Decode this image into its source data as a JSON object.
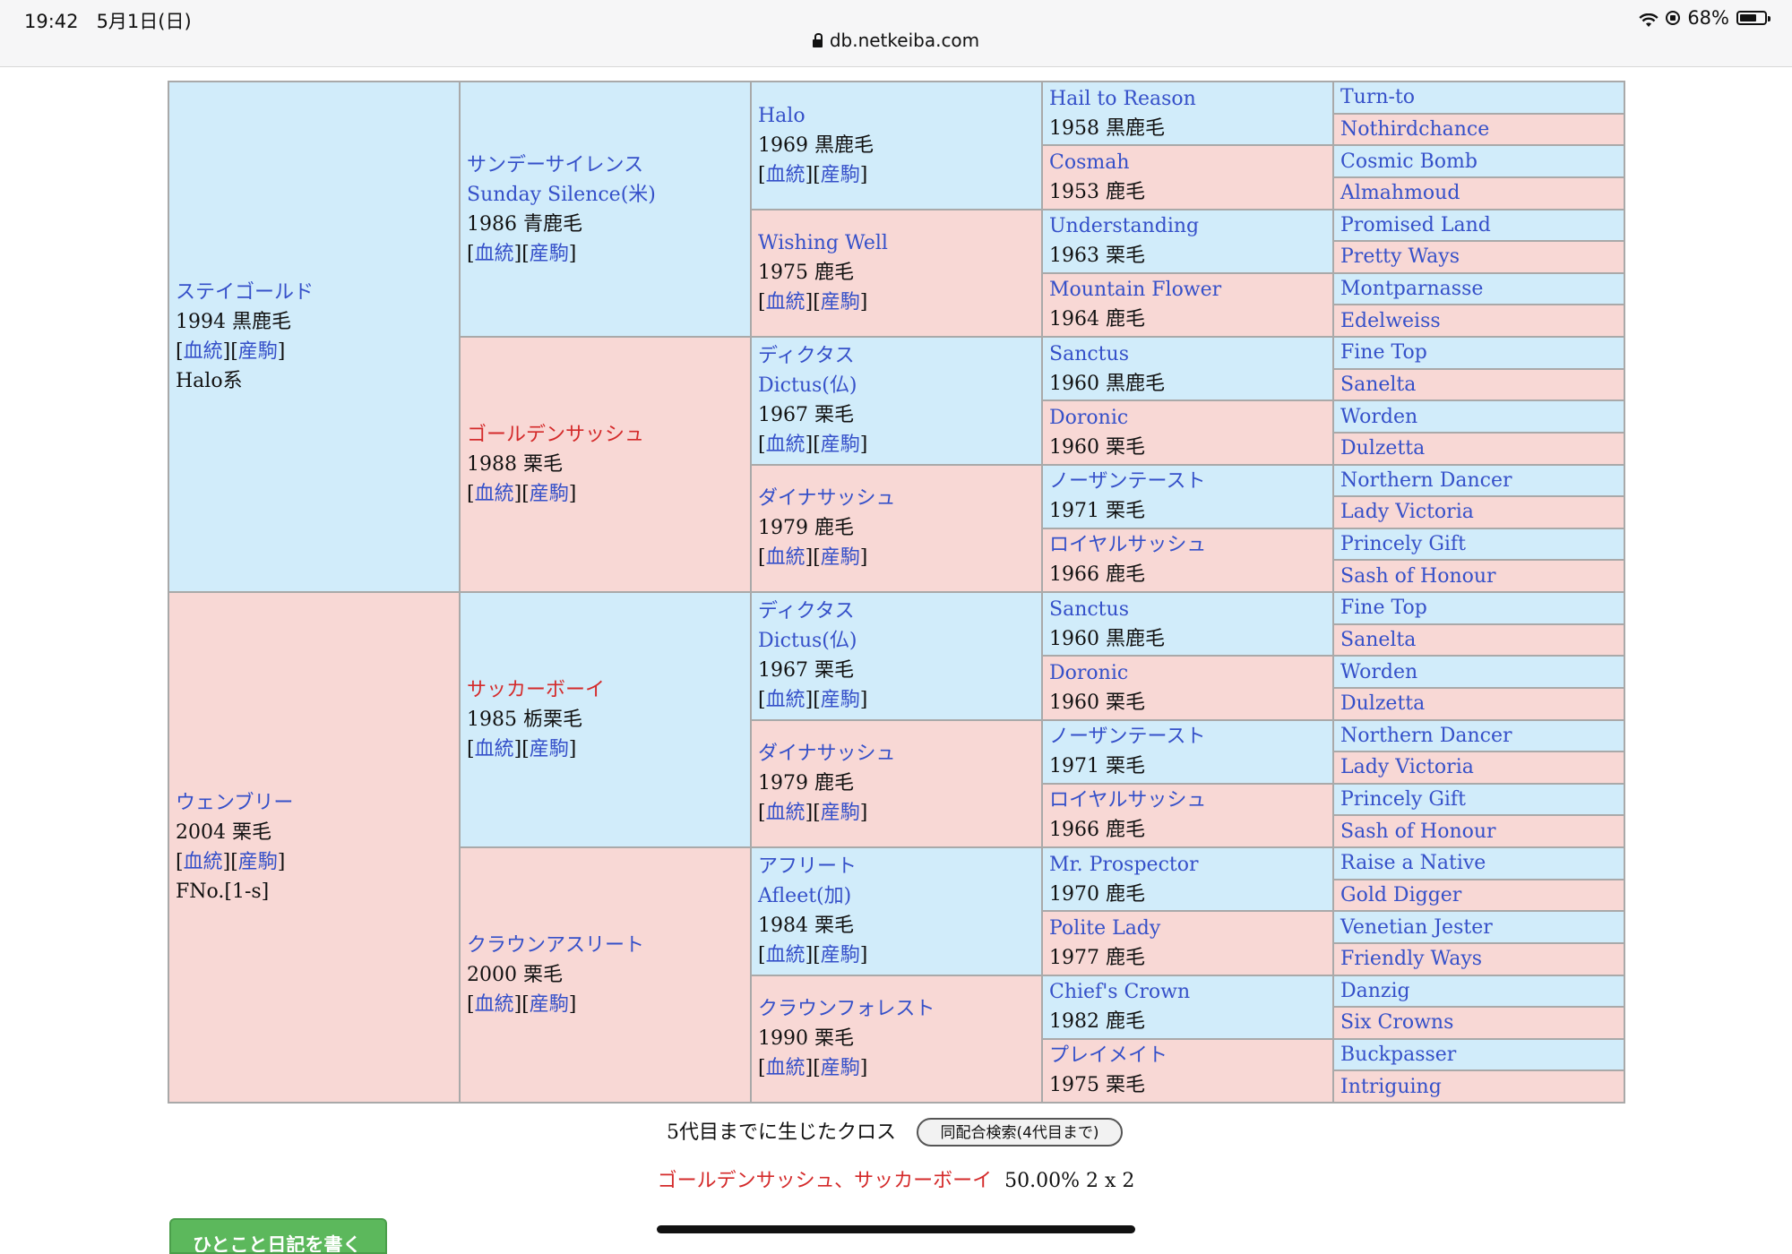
{
  "status_bar": {
    "time": "19:42",
    "date": "5月1日(日)",
    "url": "db.netkeiba.com",
    "battery": "68%",
    "battery_fill": 0.68
  },
  "links": {
    "pedigree": "血統",
    "progeny": "産駒"
  },
  "gen1": [
    {
      "name": "ステイゴールド",
      "info": "1994 黒鹿毛",
      "extra": "Halo系"
    },
    {
      "name": "ウェンブリー",
      "info": "2004 栗毛",
      "extra": "FNo.[1-s]"
    }
  ],
  "gen2": [
    {
      "name": "サンデーサイレンス",
      "name2": "Sunday Silence(米)",
      "info": "1986 青鹿毛"
    },
    {
      "name": "ゴールデンサッシュ",
      "info": "1988 栗毛"
    },
    {
      "name": "サッカーボーイ",
      "info": "1985 栃栗毛"
    },
    {
      "name": "クラウンアスリート",
      "info": "2000 栗毛"
    }
  ],
  "gen3": [
    {
      "name": "Halo",
      "info": "1969 黒鹿毛"
    },
    {
      "name": "Wishing Well",
      "info": "1975 鹿毛"
    },
    {
      "name": "ディクタス",
      "name2": "Dictus(仏)",
      "info": "1967 栗毛"
    },
    {
      "name": "ダイナサッシュ",
      "info": "1979 鹿毛"
    },
    {
      "name": "ディクタス",
      "name2": "Dictus(仏)",
      "info": "1967 栗毛"
    },
    {
      "name": "ダイナサッシュ",
      "info": "1979 鹿毛"
    },
    {
      "name": "アフリート",
      "name2": "Afleet(加)",
      "info": "1984 栗毛"
    },
    {
      "name": "クラウンフォレスト",
      "info": "1990 栗毛"
    }
  ],
  "gen4": [
    {
      "name": "Hail to Reason",
      "info": "1958 黒鹿毛"
    },
    {
      "name": "Cosmah",
      "info": "1953 鹿毛"
    },
    {
      "name": "Understanding",
      "info": "1963 栗毛"
    },
    {
      "name": "Mountain Flower",
      "info": "1964 鹿毛"
    },
    {
      "name": "Sanctus",
      "info": "1960 黒鹿毛"
    },
    {
      "name": "Doronic",
      "info": "1960 栗毛"
    },
    {
      "name": "ノーザンテースト",
      "info": "1971 栗毛"
    },
    {
      "name": "ロイヤルサッシュ",
      "info": "1966 鹿毛"
    },
    {
      "name": "Sanctus",
      "info": "1960 黒鹿毛"
    },
    {
      "name": "Doronic",
      "info": "1960 栗毛"
    },
    {
      "name": "ノーザンテースト",
      "info": "1971 栗毛"
    },
    {
      "name": "ロイヤルサッシュ",
      "info": "1966 鹿毛"
    },
    {
      "name": "Mr. Prospector",
      "info": "1970 鹿毛"
    },
    {
      "name": "Polite Lady",
      "info": "1977 鹿毛"
    },
    {
      "name": "Chief's Crown",
      "info": "1982 鹿毛"
    },
    {
      "name": "プレイメイト",
      "info": "1975 栗毛"
    }
  ],
  "gen5": [
    "Turn-to",
    "Nothirdchance",
    "Cosmic Bomb",
    "Almahmoud",
    "Promised Land",
    "Pretty Ways",
    "Montparnasse",
    "Edelweiss",
    "Fine Top",
    "Sanelta",
    "Worden",
    "Dulzetta",
    "Northern Dancer",
    "Lady Victoria",
    "Princely Gift",
    "Sash of Honour",
    "Fine Top",
    "Sanelta",
    "Worden",
    "Dulzetta",
    "Northern Dancer",
    "Lady Victoria",
    "Princely Gift",
    "Sash of Honour",
    "Raise a Native",
    "Gold Digger",
    "Venetian Jester",
    "Friendly Ways",
    "Danzig",
    "Six Crowns",
    "Buckpasser",
    "Intriguing"
  ],
  "cross": {
    "title": "5代目までに生じたクロス",
    "search_button": "同配合検索(4代目まで)",
    "names": "ゴールデンサッシュ、サッカーボーイ",
    "value": "50.00%  2 x 2"
  },
  "diary_button": "ひとこと日記を書く"
}
